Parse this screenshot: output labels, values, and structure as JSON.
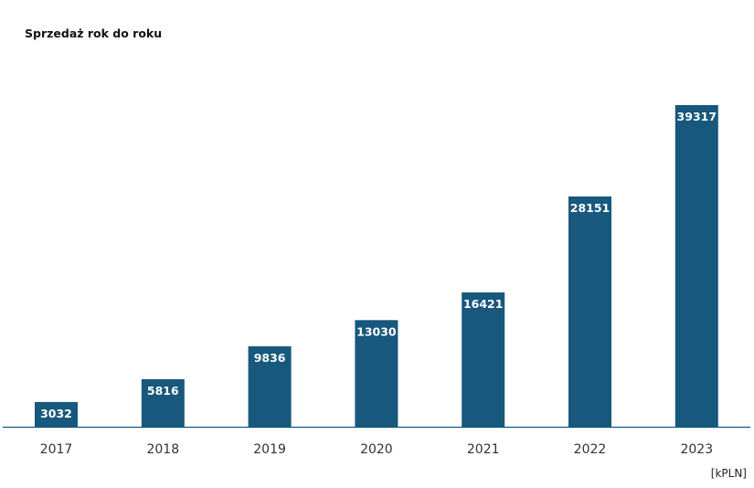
{
  "chart_data": {
    "type": "bar",
    "title": "Sprzedaż rok do roku",
    "categories": [
      "2017",
      "2018",
      "2019",
      "2020",
      "2021",
      "2022",
      "2023"
    ],
    "values": [
      3032,
      5816,
      9836,
      13030,
      16421,
      28151,
      39317
    ],
    "unit_label": "[kPLN]",
    "ylim": [
      0,
      39317
    ],
    "grid": false,
    "legend": "none",
    "bar_color": "#17587c",
    "axis_color": "#17587c",
    "data_label_color": "#ffffff"
  }
}
